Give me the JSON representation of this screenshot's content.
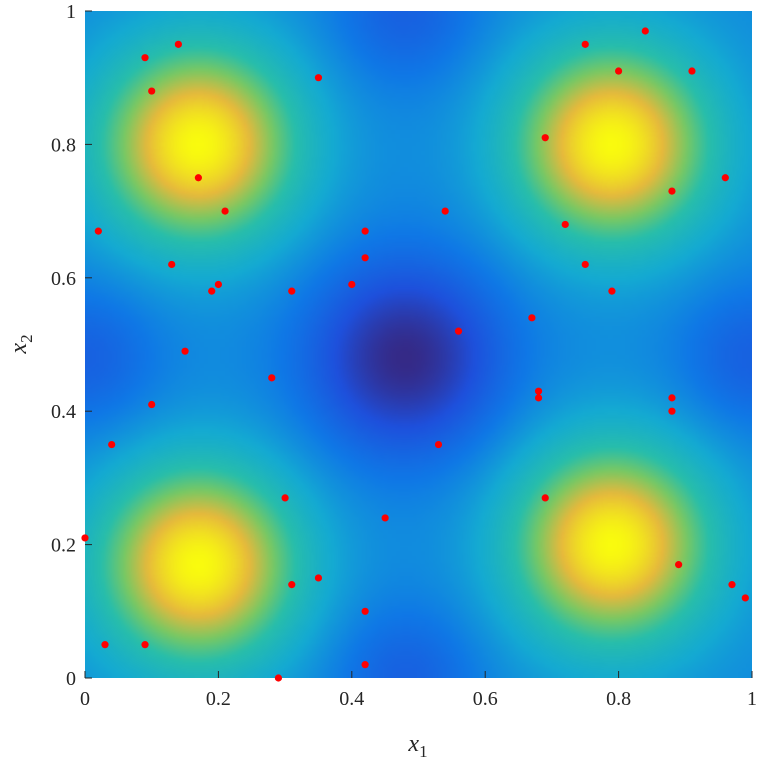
{
  "chart_data": {
    "type": "heatmap",
    "title": "",
    "xlabel": {
      "base": "x",
      "sub": "1"
    },
    "ylabel": {
      "base": "x",
      "sub": "2"
    },
    "xlim": [
      0,
      1
    ],
    "ylim": [
      0,
      1
    ],
    "xticks": [
      {
        "value": 0,
        "label": "0"
      },
      {
        "value": 0.2,
        "label": "0.2"
      },
      {
        "value": 0.4,
        "label": "0.4"
      },
      {
        "value": 0.6,
        "label": "0.6"
      },
      {
        "value": 0.8,
        "label": "0.8"
      },
      {
        "value": 1,
        "label": "1"
      }
    ],
    "yticks": [
      {
        "value": 0,
        "label": "0"
      },
      {
        "value": 0.2,
        "label": "0.2"
      },
      {
        "value": 0.4,
        "label": "0.4"
      },
      {
        "value": 0.6,
        "label": "0.6"
      },
      {
        "value": 0.8,
        "label": "0.8"
      },
      {
        "value": 1,
        "label": "1"
      }
    ],
    "grid": false,
    "colormap": "parula",
    "surface": {
      "peaks": [
        [
          0.17,
          0.8
        ],
        [
          0.79,
          0.8
        ],
        [
          0.17,
          0.17
        ],
        [
          0.79,
          0.2
        ]
      ],
      "minimum": [
        0.48,
        0.48
      ]
    },
    "marker_color": "#ff0000",
    "points": [
      [
        0.09,
        0.93
      ],
      [
        0.14,
        0.95
      ],
      [
        0.1,
        0.88
      ],
      [
        0.35,
        0.9
      ],
      [
        0.17,
        0.75
      ],
      [
        0.21,
        0.7
      ],
      [
        0.02,
        0.67
      ],
      [
        0.13,
        0.62
      ],
      [
        0.2,
        0.59
      ],
      [
        0.19,
        0.58
      ],
      [
        0.31,
        0.58
      ],
      [
        0.15,
        0.49
      ],
      [
        0.28,
        0.45
      ],
      [
        0.1,
        0.41
      ],
      [
        0.04,
        0.35
      ],
      [
        0.3,
        0.27
      ],
      [
        0.45,
        0.24
      ],
      [
        0.0,
        0.21
      ],
      [
        0.31,
        0.14
      ],
      [
        0.35,
        0.15
      ],
      [
        0.42,
        0.1
      ],
      [
        0.03,
        0.05
      ],
      [
        0.09,
        0.05
      ],
      [
        0.29,
        0.0
      ],
      [
        0.42,
        0.02
      ],
      [
        0.42,
        0.67
      ],
      [
        0.42,
        0.63
      ],
      [
        0.4,
        0.59
      ],
      [
        0.54,
        0.7
      ],
      [
        0.56,
        0.52
      ],
      [
        0.53,
        0.35
      ],
      [
        0.67,
        0.54
      ],
      [
        0.68,
        0.43
      ],
      [
        0.68,
        0.42
      ],
      [
        0.69,
        0.27
      ],
      [
        0.75,
        0.95
      ],
      [
        0.84,
        0.97
      ],
      [
        0.8,
        0.91
      ],
      [
        0.91,
        0.91
      ],
      [
        0.69,
        0.81
      ],
      [
        0.88,
        0.73
      ],
      [
        0.96,
        0.75
      ],
      [
        0.72,
        0.68
      ],
      [
        0.75,
        0.62
      ],
      [
        0.79,
        0.58
      ],
      [
        0.88,
        0.42
      ],
      [
        0.88,
        0.4
      ],
      [
        0.89,
        0.17
      ],
      [
        0.97,
        0.14
      ],
      [
        0.99,
        0.12
      ]
    ]
  }
}
